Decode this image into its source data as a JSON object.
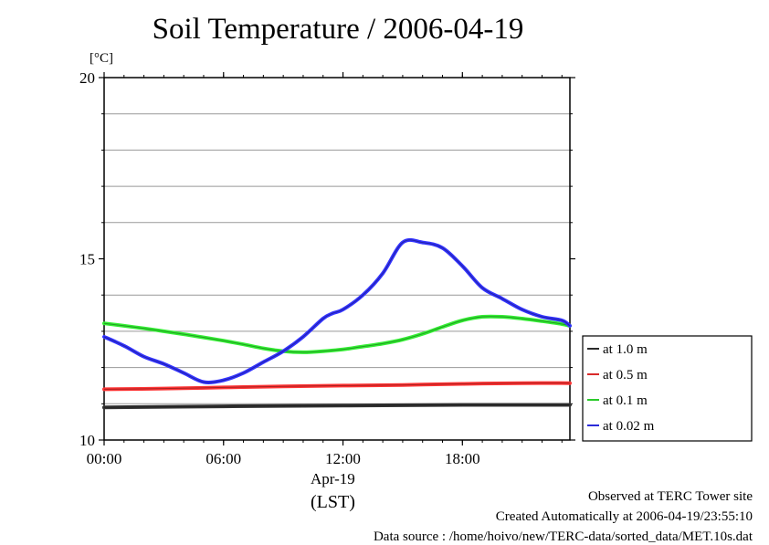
{
  "chart_data": {
    "type": "line",
    "title": "Soil Temperature / 2006-04-19",
    "ylabel": "[°C]",
    "xlabel_date": "Apr-19",
    "xlabel_tz": "(LST)",
    "ylim": [
      10,
      20
    ],
    "xlim": [
      0,
      23.4
    ],
    "y_ticks": [
      {
        "value": 10,
        "label": "10"
      },
      {
        "value": 15,
        "label": "15"
      },
      {
        "value": 20,
        "label": "20"
      }
    ],
    "y_grid": [
      11,
      12,
      13,
      14,
      16,
      17,
      18,
      19
    ],
    "x_ticks": [
      {
        "value": 0,
        "label": "00:00"
      },
      {
        "value": 6,
        "label": "06:00"
      },
      {
        "value": 12,
        "label": "12:00"
      },
      {
        "value": 18,
        "label": "18:00"
      }
    ],
    "grid": true,
    "legend_position": "right",
    "series": [
      {
        "name": "at 1.0 m",
        "color": "#333333",
        "x": [
          0,
          6,
          12,
          18,
          23.4
        ],
        "values": [
          10.9,
          10.93,
          10.95,
          10.97,
          10.97
        ]
      },
      {
        "name": "at 0.5 m",
        "color": "#ff3333",
        "x": [
          0,
          3,
          6,
          9,
          12,
          15,
          18,
          21,
          23.4
        ],
        "values": [
          11.4,
          11.42,
          11.45,
          11.48,
          11.5,
          11.52,
          11.55,
          11.57,
          11.57
        ]
      },
      {
        "name": "at 0.1 m",
        "color": "#33ee33",
        "x": [
          0,
          1,
          2,
          3,
          4,
          5,
          6,
          7,
          8,
          9,
          10,
          11,
          12,
          13,
          14,
          15,
          16,
          17,
          18,
          19,
          20,
          21,
          22,
          23,
          23.4
        ],
        "values": [
          13.22,
          13.15,
          13.08,
          13.0,
          12.92,
          12.83,
          12.74,
          12.64,
          12.53,
          12.45,
          12.42,
          12.45,
          12.5,
          12.58,
          12.66,
          12.77,
          12.93,
          13.12,
          13.3,
          13.4,
          13.4,
          13.35,
          13.28,
          13.2,
          13.15
        ]
      },
      {
        "name": "at 0.02 m",
        "color": "#3333ff",
        "x": [
          0,
          1,
          2,
          3,
          4,
          5,
          6,
          7,
          8,
          9,
          10,
          11,
          11.5,
          12,
          13,
          14,
          15,
          16,
          17,
          18,
          19,
          20,
          21,
          22,
          23,
          23.4
        ],
        "values": [
          12.85,
          12.6,
          12.3,
          12.1,
          11.85,
          11.6,
          11.65,
          11.85,
          12.15,
          12.45,
          12.85,
          13.35,
          13.5,
          13.6,
          14.0,
          14.6,
          15.45,
          15.45,
          15.3,
          14.8,
          14.2,
          13.9,
          13.6,
          13.4,
          13.3,
          13.15
        ]
      }
    ]
  },
  "footer": {
    "line1": "Observed at TERC Tower site",
    "line2": "Created Automatically at 2006-04-19/23:55:10",
    "line3": "Data source : /home/hoivo/new/TERC-data/sorted_data/MET.10s.dat"
  }
}
